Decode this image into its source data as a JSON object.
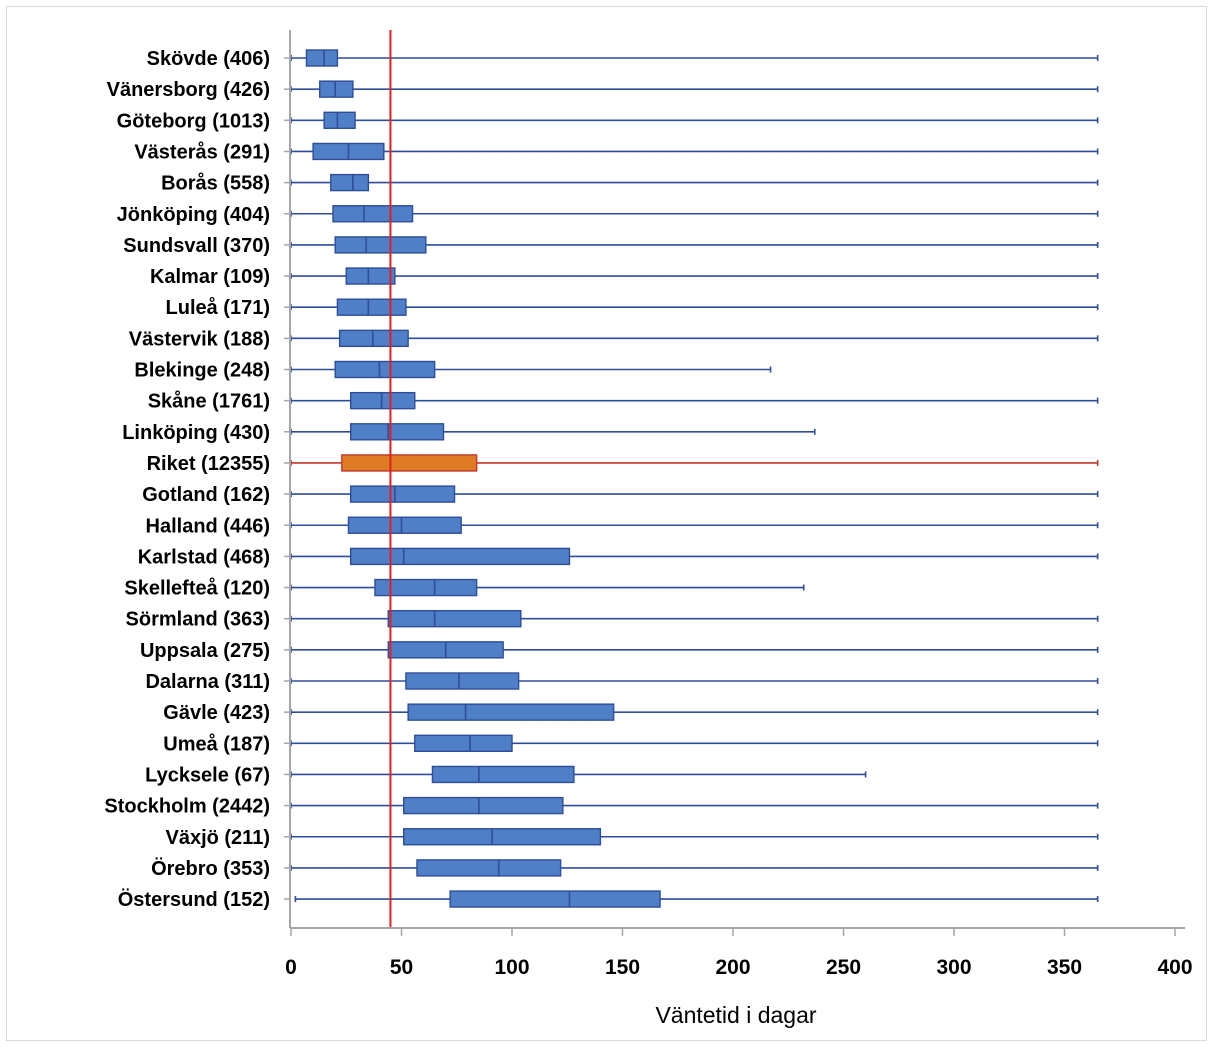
{
  "chart_data": {
    "type": "boxplot",
    "orientation": "horizontal",
    "xlabel": "Väntetid i dagar",
    "xlim": [
      0,
      400
    ],
    "xticks": [
      0,
      50,
      100,
      150,
      200,
      250,
      300,
      350,
      400
    ],
    "reference_line": {
      "value": 45,
      "color": "#e02020"
    },
    "colors": {
      "box": "#4f7fc7",
      "box_edge": "#2e4d9a",
      "whisker": "#2e4d9a",
      "highlight_box": "#e07b25",
      "highlight_edge": "#c0392b",
      "highlight_whisker": "#c0392b"
    },
    "categories": [
      {
        "label": "Skövde (406)",
        "min": 0,
        "q1": 7,
        "median": 15,
        "q3": 21,
        "max": 365
      },
      {
        "label": "Vänersborg (426)",
        "min": 0,
        "q1": 13,
        "median": 20,
        "q3": 28,
        "max": 365
      },
      {
        "label": "Göteborg (1013)",
        "min": 0,
        "q1": 15,
        "median": 21,
        "q3": 29,
        "max": 365
      },
      {
        "label": "Västerås (291)",
        "min": 0,
        "q1": 10,
        "median": 26,
        "q3": 42,
        "max": 365
      },
      {
        "label": "Borås (558)",
        "min": 0,
        "q1": 18,
        "median": 28,
        "q3": 35,
        "max": 365
      },
      {
        "label": "Jönköping (404)",
        "min": 0,
        "q1": 19,
        "median": 33,
        "q3": 55,
        "max": 365
      },
      {
        "label": "Sundsvall (370)",
        "min": 0,
        "q1": 20,
        "median": 34,
        "q3": 61,
        "max": 365
      },
      {
        "label": "Kalmar (109)",
        "min": 0,
        "q1": 25,
        "median": 35,
        "q3": 47,
        "max": 365
      },
      {
        "label": "Luleå (171)",
        "min": 0,
        "q1": 21,
        "median": 35,
        "q3": 52,
        "max": 365
      },
      {
        "label": "Västervik (188)",
        "min": 0,
        "q1": 22,
        "median": 37,
        "q3": 53,
        "max": 365
      },
      {
        "label": "Blekinge (248)",
        "min": 0,
        "q1": 20,
        "median": 40,
        "q3": 65,
        "max": 217
      },
      {
        "label": "Skåne (1761)",
        "min": 0,
        "q1": 27,
        "median": 41,
        "q3": 56,
        "max": 365
      },
      {
        "label": "Linköping (430)",
        "min": 0,
        "q1": 27,
        "median": 44,
        "q3": 69,
        "max": 237
      },
      {
        "label": "Riket (12355)",
        "min": 0,
        "q1": 23,
        "median": 45,
        "q3": 84,
        "max": 365,
        "highlight": true
      },
      {
        "label": "Gotland (162)",
        "min": 0,
        "q1": 27,
        "median": 47,
        "q3": 74,
        "max": 365
      },
      {
        "label": "Halland (446)",
        "min": 0,
        "q1": 26,
        "median": 50,
        "q3": 77,
        "max": 365
      },
      {
        "label": "Karlstad (468)",
        "min": 0,
        "q1": 27,
        "median": 51,
        "q3": 126,
        "max": 365
      },
      {
        "label": "Skellefteå (120)",
        "min": 0,
        "q1": 38,
        "median": 65,
        "q3": 84,
        "max": 232
      },
      {
        "label": "Sörmland (363)",
        "min": 0,
        "q1": 44,
        "median": 65,
        "q3": 104,
        "max": 365
      },
      {
        "label": "Uppsala (275)",
        "min": 0,
        "q1": 44,
        "median": 70,
        "q3": 96,
        "max": 365
      },
      {
        "label": "Dalarna (311)",
        "min": 0,
        "q1": 52,
        "median": 76,
        "q3": 103,
        "max": 365
      },
      {
        "label": "Gävle (423)",
        "min": 0,
        "q1": 53,
        "median": 79,
        "q3": 146,
        "max": 365
      },
      {
        "label": "Umeå (187)",
        "min": 0,
        "q1": 56,
        "median": 81,
        "q3": 100,
        "max": 365
      },
      {
        "label": "Lycksele (67)",
        "min": 0,
        "q1": 64,
        "median": 85,
        "q3": 128,
        "max": 260
      },
      {
        "label": "Stockholm (2442)",
        "min": 0,
        "q1": 51,
        "median": 85,
        "q3": 123,
        "max": 365
      },
      {
        "label": "Växjö (211)",
        "min": 0,
        "q1": 51,
        "median": 91,
        "q3": 140,
        "max": 365
      },
      {
        "label": "Örebro (353)",
        "min": 0,
        "q1": 57,
        "median": 94,
        "q3": 122,
        "max": 365
      },
      {
        "label": "Östersund (152)",
        "min": 2,
        "q1": 72,
        "median": 126,
        "q3": 167,
        "max": 365
      }
    ]
  }
}
